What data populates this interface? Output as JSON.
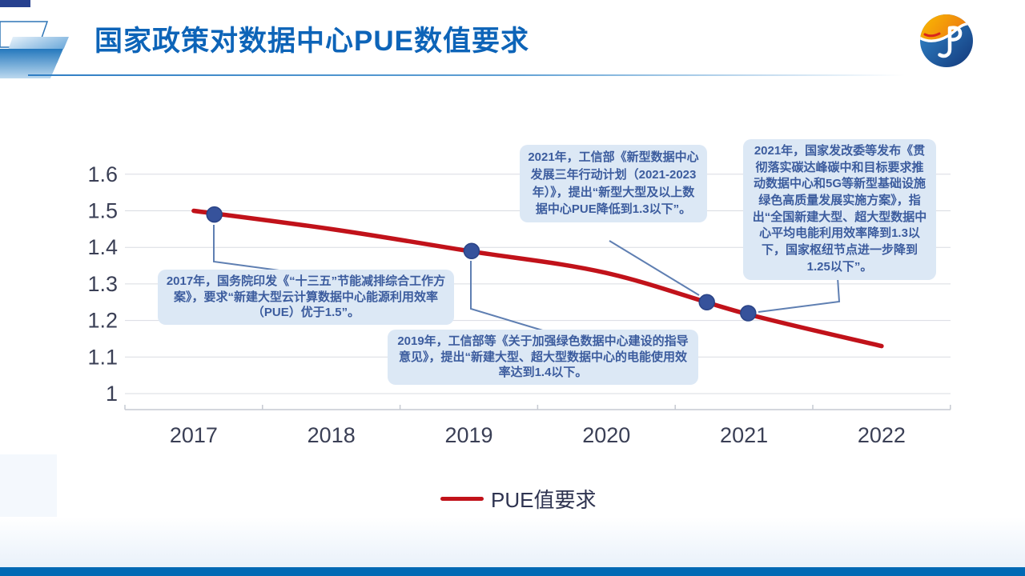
{
  "header": {
    "title": "国家政策对数据中心PUE数值要求"
  },
  "logo": {
    "alt": "jt-company-logo",
    "colors": {
      "orange": "#f6a800",
      "blue": "#1c5fae",
      "swoosh": "#ffffff",
      "accent": "#d9251c"
    }
  },
  "chart_data": {
    "type": "line",
    "title": "国家政策对数据中心PUE数值要求",
    "x": [
      2017,
      2018,
      2019,
      2020,
      2021,
      2022
    ],
    "x_labels": [
      "2017",
      "2018",
      "2019",
      "2020",
      "2021",
      "2022"
    ],
    "yticks": [
      1,
      1.1,
      1.2,
      1.3,
      1.4,
      1.5,
      1.6
    ],
    "ytick_labels": [
      "1",
      "1.1",
      "1.2",
      "1.3",
      "1.4",
      "1.5",
      "1.6"
    ],
    "ylim": [
      1,
      1.6
    ],
    "grid": "horizontal",
    "legend_position": "bottom",
    "series": [
      {
        "name": "PUE值要求",
        "color": "#c1121a",
        "values": [
          1.5,
          1.45,
          1.39,
          1.33,
          1.22,
          1.13
        ]
      }
    ],
    "markers": [
      {
        "year": 2017.15,
        "pue": 1.49
      },
      {
        "year": 2019.02,
        "pue": 1.39
      },
      {
        "year": 2020.73,
        "pue": 1.25
      },
      {
        "year": 2021.03,
        "pue": 1.22
      }
    ],
    "marker_color": "#36529b"
  },
  "callouts": [
    {
      "text": "2017年，国务院印发《“十三五”节能减排综合工作方案》，要求“新建大型云计算数据中心能源利用效率（PUE）优于1.5”。"
    },
    {
      "text": "2019年，工信部等《关于加强绿色数据中心建设的指导意见》，提出“新建大型、超大型数据中心的电能使用效率达到1.4以下。"
    },
    {
      "text": "2021年，工信部《新型数据中心发展三年行动计划（2021-2023年）》，提出“新型大型及以上数据中心PUE降低到1.3以下”。"
    },
    {
      "text": "2021年，国家发改委等发布《贯彻落实碳达峰碳中和目标要求推动数据中心和5G等新型基础设施绿色高质量发展实施方案》，指出“全国新建大型、超大型数据中心平均电能利用效率降到1.3以下，国家枢纽节点进一步降到1.25以下”。"
    }
  ],
  "legend": {
    "label": "PUE值要求",
    "swatch_color": "#c1121a"
  },
  "theme": {
    "title_blue": "#0d64b8",
    "bottom_bar_blue": "#0169b4",
    "callout_bg": "#dce8f5",
    "callout_text": "#3c5c9e",
    "gridline": "#d9dce2"
  }
}
